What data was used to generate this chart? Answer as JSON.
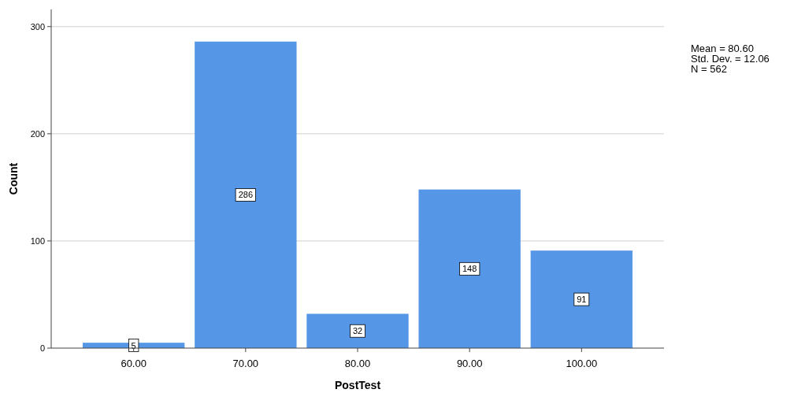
{
  "chart_data": {
    "type": "bar",
    "xlabel": "PostTest",
    "ylabel": "Count",
    "categories": [
      "60.00",
      "70.00",
      "80.00",
      "90.00",
      "100.00"
    ],
    "values": [
      5,
      286,
      32,
      148,
      91
    ],
    "color": "#5596e6",
    "ylim": [
      0,
      316
    ],
    "yticks": [
      0,
      100,
      200,
      300
    ],
    "grid": "y",
    "data_labels": true,
    "annotations": [
      "Mean = 80.60",
      "Std. Dev. = 12.06",
      "N = 562"
    ]
  }
}
